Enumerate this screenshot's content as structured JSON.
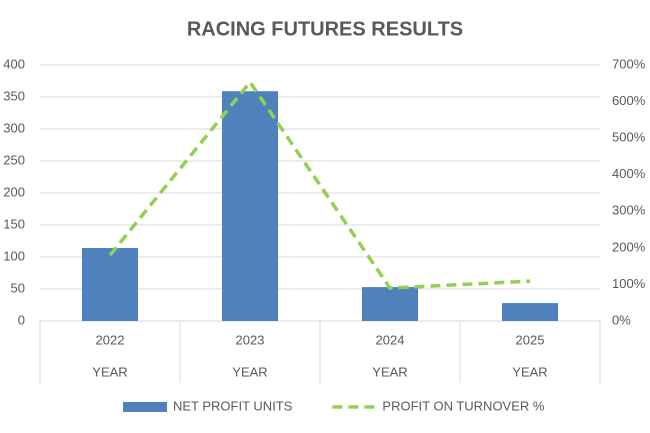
{
  "chart_data": {
    "type": "combo",
    "title": "RACING FUTURES RESULTS",
    "categories": [
      "2022",
      "2023",
      "2024",
      "2025"
    ],
    "category_groups": [
      "YEAR",
      "YEAR",
      "YEAR",
      "YEAR"
    ],
    "series": [
      {
        "name": "NET PROFIT UNITS",
        "type": "bar",
        "color": "#4f81bd",
        "values": [
          114,
          359,
          53,
          28
        ]
      },
      {
        "name": "PROFIT ON TURNOVER %",
        "type": "line",
        "axis": "y2",
        "color": "#92d050",
        "values": [
          180,
          653,
          90,
          109
        ]
      }
    ],
    "ylim": [
      0,
      400
    ],
    "yticks": [
      0,
      50,
      100,
      150,
      200,
      250,
      300,
      350,
      400
    ],
    "y2lim": [
      0,
      700
    ],
    "y2ticks": [
      {
        "value": 0,
        "label": "0%"
      },
      {
        "value": 100,
        "label": "100%"
      },
      {
        "value": 200,
        "label": "200%"
      },
      {
        "value": 300,
        "label": "300%"
      },
      {
        "value": 400,
        "label": "400%"
      },
      {
        "value": 500,
        "label": "500%"
      },
      {
        "value": 600,
        "label": "600%"
      },
      {
        "value": 700,
        "label": "700%"
      }
    ],
    "grid": true,
    "legend": "bottom"
  }
}
